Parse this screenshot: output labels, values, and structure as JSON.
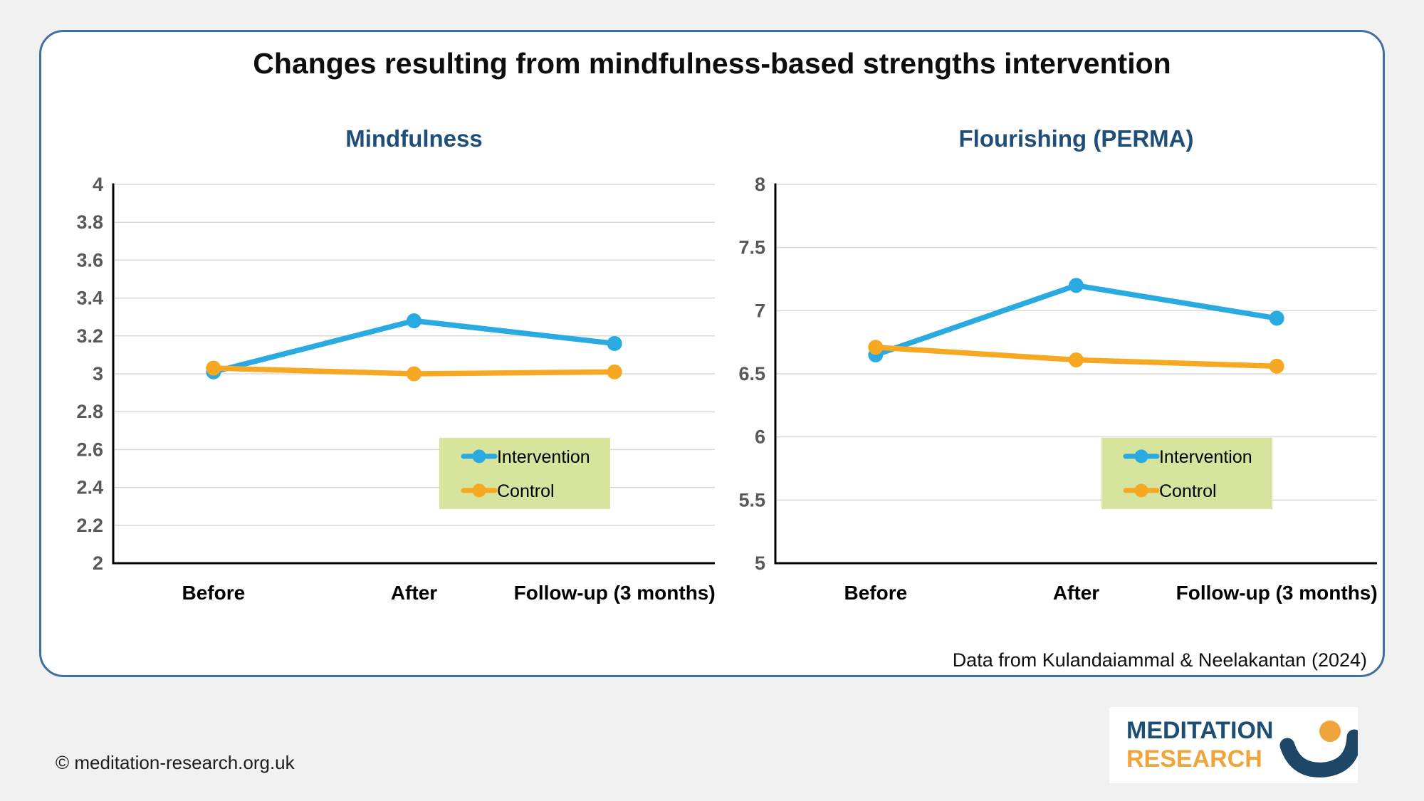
{
  "page": {
    "title": "Changes resulting from mindfulness-based strengths intervention",
    "source_note": "Data from Kulandaiammal & Neelakantan (2024)",
    "copyright": "© meditation-research.org.uk",
    "logo": {
      "line1": "MEDITATION",
      "line2": "RESEARCH"
    }
  },
  "colors": {
    "intervention": "#29ABE2",
    "control": "#F7A823",
    "legend_bg": "#D6E49E",
    "subtitle_blue": "#1F4E79",
    "panel_border": "#41709F",
    "gridline": "#D9D9D9",
    "tick_label_gray": "#595959",
    "logo_blue": "#1D4667",
    "logo_orange": "#F0A43C"
  },
  "chart_data": [
    {
      "type": "line",
      "title": "Mindfulness",
      "categories": [
        "Before",
        "After",
        "Follow-up (3 months)"
      ],
      "series": [
        {
          "name": "Intervention",
          "color": "#29ABE2",
          "values": [
            3.01,
            3.28,
            3.16
          ]
        },
        {
          "name": "Control",
          "color": "#F7A823",
          "values": [
            3.03,
            3.0,
            3.01
          ]
        }
      ],
      "ylim": [
        2,
        4
      ],
      "ytick_step": 0.2,
      "ytick_labels": [
        "4",
        "3.8",
        "3.6",
        "3.4",
        "3.2",
        "3",
        "2.8",
        "2.6",
        "2.4",
        "2.2",
        "2"
      ],
      "grid": true,
      "legend_position": "inside-lower-right"
    },
    {
      "type": "line",
      "title": "Flourishing (PERMA)",
      "categories": [
        "Before",
        "After",
        "Follow-up (3 months)"
      ],
      "series": [
        {
          "name": "Intervention",
          "color": "#29ABE2",
          "values": [
            6.65,
            7.2,
            6.94
          ]
        },
        {
          "name": "Control",
          "color": "#F7A823",
          "values": [
            6.71,
            6.61,
            6.56
          ]
        }
      ],
      "ylim": [
        5,
        8
      ],
      "ytick_step": 0.5,
      "ytick_labels": [
        "8",
        "7.5",
        "7",
        "6.5",
        "6",
        "5.5",
        "5"
      ],
      "grid": true,
      "legend_position": "inside-lower-right"
    }
  ]
}
